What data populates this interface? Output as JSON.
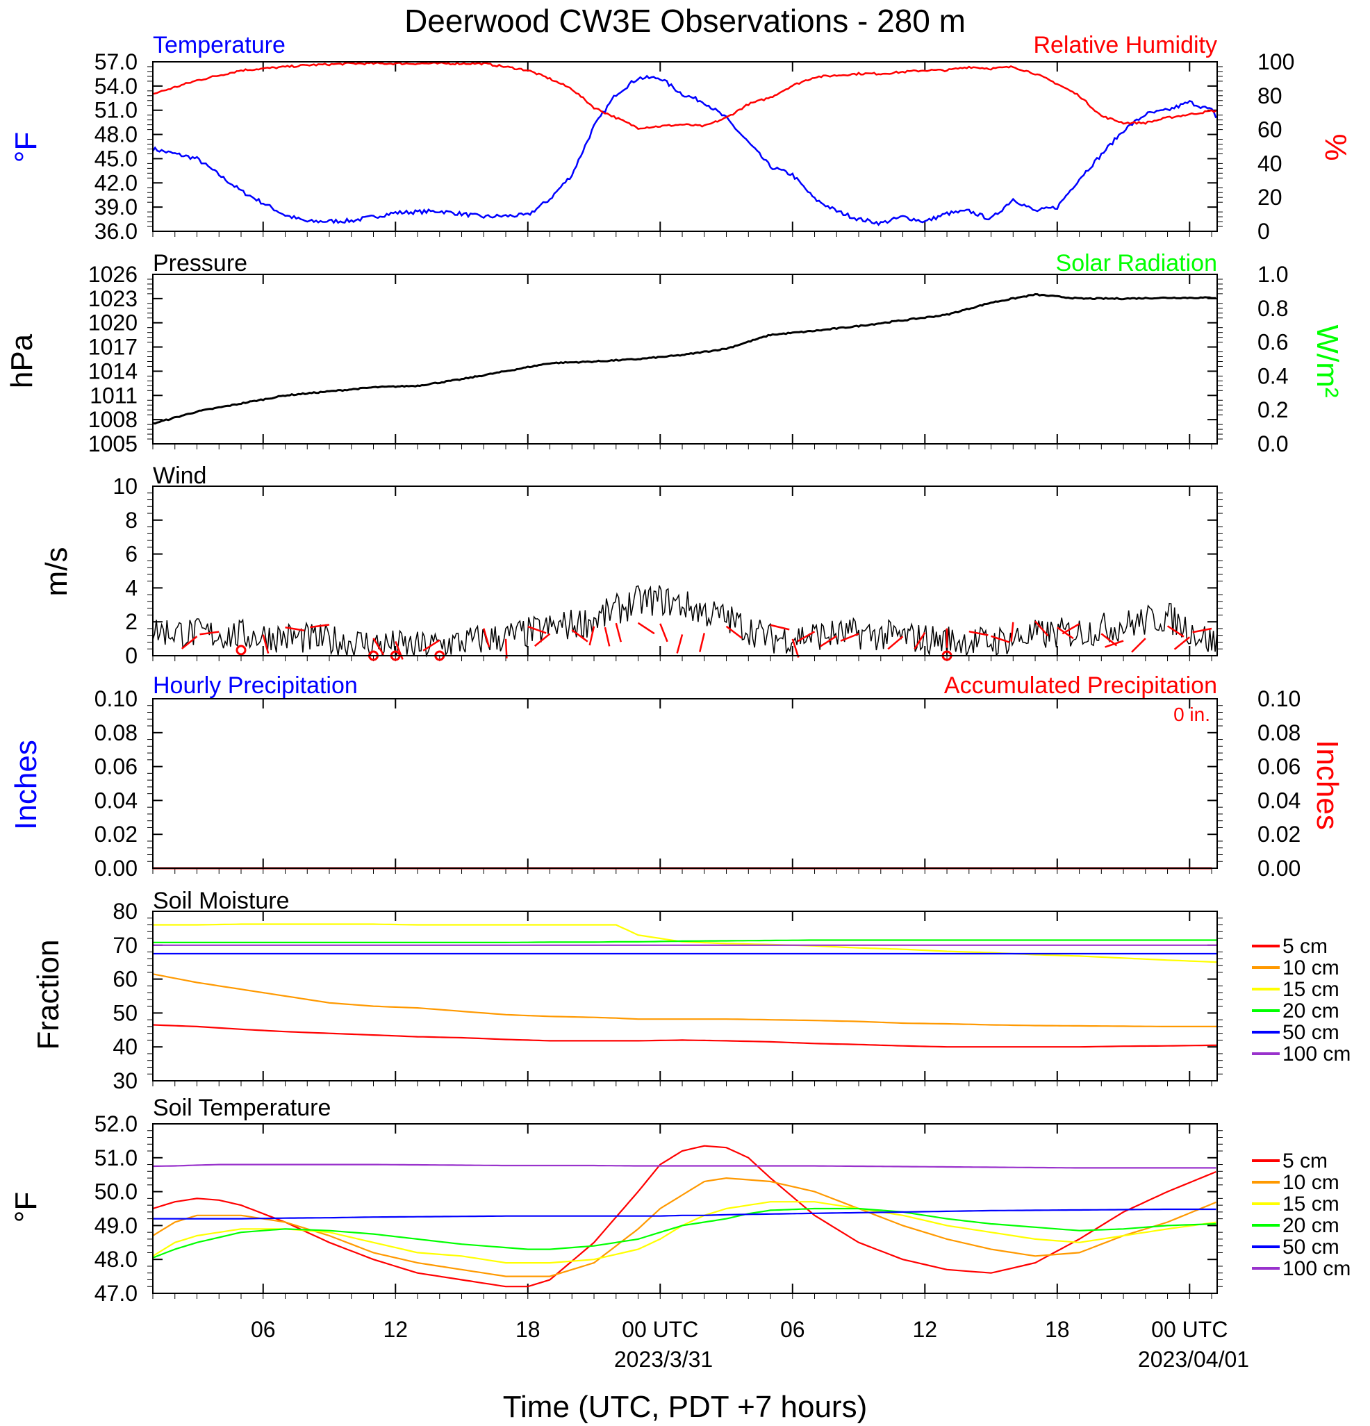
{
  "title": "Deerwood CW3E Observations - 280 m",
  "x_axis": {
    "label": "Time (UTC, PDT +7 hours)",
    "ticks": [
      "06",
      "12",
      "18",
      "00 UTC",
      "06",
      "12",
      "18",
      "00 UTC"
    ],
    "dates": [
      "2023/3/31",
      "2023/04/01"
    ]
  },
  "panels": {
    "temp_rh": {
      "left_label": "Temperature",
      "right_label": "Relative Humidity",
      "left_unit": "°F",
      "right_unit": "%",
      "left_ticks": [
        "57.0",
        "54.0",
        "51.0",
        "48.0",
        "45.0",
        "42.0",
        "39.0",
        "36.0"
      ],
      "right_ticks": [
        "100",
        "80",
        "60",
        "40",
        "20",
        "0"
      ]
    },
    "pressure": {
      "left_label": "Pressure",
      "right_label": "Solar Radiation",
      "left_unit": "hPa",
      "right_unit": "W/m²",
      "left_ticks": [
        "1026",
        "1023",
        "1020",
        "1017",
        "1014",
        "1011",
        "1008",
        "1005"
      ],
      "right_ticks": [
        "1.0",
        "0.8",
        "0.6",
        "0.4",
        "0.2",
        "0.0"
      ]
    },
    "wind": {
      "left_label": "Wind",
      "left_unit": "m/s",
      "left_ticks": [
        "10",
        "8",
        "6",
        "4",
        "2",
        "0"
      ]
    },
    "precip": {
      "left_label": "Hourly Precipitation",
      "right_label": "Accumulated Precipitation",
      "left_unit": "Inches",
      "right_unit": "Inches",
      "accum_text": "0 in.",
      "left_ticks": [
        "0.10",
        "0.08",
        "0.06",
        "0.04",
        "0.02",
        "0.00"
      ],
      "right_ticks": [
        "0.10",
        "0.08",
        "0.06",
        "0.04",
        "0.02",
        "0.00"
      ]
    },
    "soil_moisture": {
      "left_label": "Soil Moisture",
      "left_unit": "Fraction",
      "left_ticks": [
        "80",
        "70",
        "60",
        "50",
        "40",
        "30"
      ]
    },
    "soil_temp": {
      "left_label": "Soil Temperature",
      "left_unit": "°F",
      "left_ticks": [
        "52.0",
        "51.0",
        "50.0",
        "49.0",
        "48.0",
        "47.0"
      ]
    }
  },
  "legend": [
    "5 cm",
    "10 cm",
    "15 cm",
    "20 cm",
    "50 cm",
    "100 cm"
  ],
  "colors": {
    "temperature": "#0000ff",
    "humidity": "#ff0000",
    "pressure": "#000000",
    "solar": "#00ff00",
    "wind": "#000000",
    "barb": "#ff0000",
    "d5": "#ff0000",
    "d10": "#ff9900",
    "d15": "#ffff00",
    "d20": "#00ff00",
    "d50": "#0000ff",
    "d100": "#9932cc"
  },
  "chart_data": [
    {
      "type": "line",
      "title": "Temperature / Relative Humidity",
      "x_hours_from_start": [
        0,
        2,
        4,
        6,
        7,
        9,
        11,
        13,
        15,
        17,
        18,
        19,
        20,
        21,
        22,
        23,
        24,
        25,
        26,
        27,
        28,
        29,
        30,
        31,
        32,
        33,
        34,
        35,
        36,
        37,
        38,
        39,
        40,
        41,
        42,
        43,
        44,
        45,
        46,
        47,
        48,
        48.25
      ],
      "series": [
        {
          "name": "Temperature",
          "axis": "left",
          "unit": "°F",
          "values": [
            46.2,
            45,
            41,
            38,
            37.2,
            37.3,
            38.3,
            38.5,
            37.8,
            38,
            40,
            43,
            49,
            53,
            55,
            55,
            53,
            52,
            50,
            47,
            44,
            43,
            40,
            38.5,
            37.5,
            37,
            37.8,
            37.2,
            38.2,
            38.5,
            37.5,
            40,
            38.5,
            39,
            42.5,
            45.5,
            48.5,
            50.5,
            51,
            52,
            51,
            50
          ]
        },
        {
          "name": "Relative Humidity",
          "axis": "right",
          "unit": "%",
          "values": [
            81,
            89,
            95,
            97,
            98,
            99,
            99,
            99,
            99,
            95,
            90,
            84,
            73,
            67,
            61,
            62,
            63,
            62,
            67,
            75,
            79,
            86,
            91,
            92,
            93,
            93,
            94,
            95,
            95,
            97,
            96,
            97,
            93,
            87,
            80,
            68,
            64,
            64,
            67,
            69,
            71,
            71
          ]
        }
      ],
      "ylim_left": [
        36,
        57
      ],
      "ylim_right": [
        0,
        100
      ]
    },
    {
      "type": "line",
      "title": "Pressure",
      "x_hours_from_start": [
        0,
        2,
        4,
        6,
        8,
        10,
        12,
        14,
        16,
        18,
        20,
        22,
        24,
        26,
        28,
        30,
        32,
        34,
        36,
        38,
        40,
        42,
        44,
        46,
        48
      ],
      "series": [
        {
          "name": "Pressure",
          "unit": "hPa",
          "values": [
            1007.5,
            1009,
            1010,
            1011,
            1011.5,
            1012,
            1012.2,
            1013,
            1014,
            1015,
            1015.2,
            1015.5,
            1016,
            1016.8,
            1018.5,
            1019,
            1019.6,
            1020.3,
            1021,
            1022.5,
            1023.5,
            1023,
            1023,
            1023.1,
            1023.1
          ]
        }
      ],
      "ylim": [
        1005,
        1026
      ]
    },
    {
      "type": "line",
      "title": "Wind",
      "x_hours_from_start": [
        0,
        2,
        4,
        6,
        8,
        10,
        12,
        14,
        16,
        18,
        20,
        21,
        22,
        23,
        24,
        25,
        26,
        27,
        28,
        30,
        32,
        34,
        36,
        38,
        40,
        42,
        44,
        46,
        48
      ],
      "series": [
        {
          "name": "Wind speed",
          "unit": "m/s",
          "values": [
            1.5,
            1.3,
            1.2,
            1.1,
            0.9,
            0.7,
            0.5,
            0.8,
            1.1,
            1.6,
            2.1,
            2.7,
            3.2,
            3.3,
            3.0,
            2.6,
            2.2,
            1.6,
            1.0,
            1.2,
            1.3,
            1.1,
            0.9,
            0.8,
            1.2,
            1.4,
            1.8,
            2.3,
            0.8
          ]
        }
      ],
      "ylim": [
        0,
        10
      ]
    },
    {
      "type": "line",
      "title": "Precipitation",
      "x_hours_from_start": [
        0,
        48.25
      ],
      "series": [
        {
          "name": "Hourly Precipitation",
          "values": [
            0,
            0
          ]
        },
        {
          "name": "Accumulated Precipitation",
          "values": [
            0,
            0
          ]
        }
      ],
      "ylim": [
        0,
        0.1
      ]
    },
    {
      "type": "line",
      "title": "Soil Moisture",
      "x_hours_from_start": [
        0,
        2,
        4,
        6,
        8,
        10,
        12,
        14,
        16,
        18,
        20,
        21,
        22,
        24,
        26,
        28,
        30,
        32,
        34,
        36,
        38,
        40,
        42,
        44,
        46,
        48.25
      ],
      "series": [
        {
          "name": "5 cm",
          "values": [
            46.5,
            46,
            45.2,
            44.5,
            44,
            43.5,
            43,
            42.7,
            42.2,
            41.8,
            41.8,
            41.8,
            41.8,
            42,
            41.8,
            41.5,
            41,
            40.7,
            40.3,
            40,
            40,
            40,
            40,
            40.2,
            40.3,
            40.5
          ]
        },
        {
          "name": "10 cm",
          "values": [
            61.5,
            59,
            57,
            55,
            53,
            52,
            51.5,
            50.5,
            49.5,
            49,
            48.7,
            48.5,
            48.2,
            48.2,
            48.2,
            48,
            47.8,
            47.5,
            47,
            46.8,
            46.5,
            46.3,
            46.2,
            46.1,
            46,
            46
          ]
        },
        {
          "name": "15 cm",
          "values": [
            76,
            76,
            76.2,
            76.2,
            76.2,
            76.2,
            76,
            76,
            76,
            76,
            76,
            76,
            73,
            71,
            70.5,
            70.2,
            69.8,
            69.2,
            68.8,
            68.2,
            67.8,
            67.2,
            66.8,
            66.2,
            65.6,
            65
          ]
        },
        {
          "name": "20 cm",
          "values": [
            70.8,
            70.8,
            70.8,
            70.8,
            70.8,
            70.8,
            70.8,
            70.8,
            70.8,
            70.9,
            70.9,
            71,
            71,
            71.2,
            71.3,
            71.4,
            71.5,
            71.5,
            71.5,
            71.5,
            71.5,
            71.5,
            71.5,
            71.5,
            71.5,
            71.5
          ]
        },
        {
          "name": "50 cm",
          "values": [
            67.5,
            67.5,
            67.5,
            67.5,
            67.5,
            67.5,
            67.5,
            67.5,
            67.5,
            67.5,
            67.5,
            67.5,
            67.5,
            67.5,
            67.5,
            67.5,
            67.5,
            67.5,
            67.5,
            67.5,
            67.5,
            67.5,
            67.5,
            67.5,
            67.5,
            67.5
          ]
        },
        {
          "name": "100 cm",
          "values": [
            70,
            70,
            70,
            70,
            70,
            70,
            70,
            70,
            70,
            70,
            70,
            70,
            70,
            70,
            70,
            70,
            70,
            70,
            70,
            70,
            70,
            70,
            70,
            70,
            70,
            70
          ]
        }
      ],
      "ylim": [
        30,
        80
      ]
    },
    {
      "type": "line",
      "title": "Soil Temperature",
      "x_hours_from_start": [
        0,
        1,
        2,
        3,
        4,
        6,
        8,
        10,
        12,
        14,
        16,
        17,
        18,
        20,
        22,
        23,
        24,
        25,
        26,
        27,
        28,
        30,
        32,
        34,
        36,
        38,
        40,
        42,
        44,
        46,
        48.25
      ],
      "series": [
        {
          "name": "5 cm",
          "values": [
            49.5,
            49.7,
            49.8,
            49.75,
            49.6,
            49.1,
            48.5,
            48,
            47.6,
            47.4,
            47.2,
            47.2,
            47.4,
            48.5,
            50,
            50.8,
            51.2,
            51.35,
            51.3,
            51,
            50.4,
            49.3,
            48.5,
            48,
            47.7,
            47.6,
            47.9,
            48.6,
            49.4,
            50,
            50.6
          ]
        },
        {
          "name": "10 cm",
          "values": [
            48.7,
            49.1,
            49.3,
            49.3,
            49.3,
            49.1,
            48.7,
            48.2,
            47.9,
            47.7,
            47.5,
            47.5,
            47.5,
            47.9,
            48.9,
            49.5,
            49.9,
            50.3,
            50.4,
            50.35,
            50.3,
            50,
            49.5,
            49,
            48.6,
            48.3,
            48.1,
            48.2,
            48.7,
            49.1,
            49.7
          ]
        },
        {
          "name": "15 cm",
          "values": [
            48.1,
            48.5,
            48.7,
            48.8,
            48.9,
            48.9,
            48.8,
            48.5,
            48.2,
            48.1,
            47.9,
            47.9,
            47.9,
            48,
            48.3,
            48.6,
            49,
            49.3,
            49.5,
            49.6,
            49.7,
            49.7,
            49.5,
            49.3,
            49,
            48.8,
            48.6,
            48.5,
            48.7,
            48.9,
            49.1
          ]
        },
        {
          "name": "20 cm",
          "values": [
            48.05,
            48.3,
            48.5,
            48.65,
            48.8,
            48.9,
            48.85,
            48.75,
            48.6,
            48.45,
            48.35,
            48.3,
            48.3,
            48.4,
            48.6,
            48.8,
            49,
            49.1,
            49.2,
            49.35,
            49.45,
            49.5,
            49.5,
            49.4,
            49.2,
            49.05,
            48.95,
            48.85,
            48.9,
            49,
            49.05
          ]
        },
        {
          "name": "50 cm",
          "values": [
            49.2,
            49.2,
            49.2,
            49.2,
            49.2,
            49.22,
            49.23,
            49.25,
            49.26,
            49.27,
            49.28,
            49.28,
            49.28,
            49.28,
            49.28,
            49.28,
            49.3,
            49.3,
            49.32,
            49.33,
            49.34,
            49.36,
            49.38,
            49.4,
            49.42,
            49.44,
            49.45,
            49.46,
            49.47,
            49.48,
            49.48
          ]
        },
        {
          "name": "100 cm",
          "values": [
            50.75,
            50.76,
            50.78,
            50.8,
            50.8,
            50.8,
            50.8,
            50.8,
            50.79,
            50.78,
            50.77,
            50.77,
            50.77,
            50.77,
            50.76,
            50.76,
            50.76,
            50.76,
            50.76,
            50.76,
            50.76,
            50.76,
            50.75,
            50.74,
            50.73,
            50.72,
            50.71,
            50.7,
            50.7,
            50.7,
            50.7
          ]
        }
      ],
      "ylim": [
        47,
        52
      ]
    }
  ]
}
